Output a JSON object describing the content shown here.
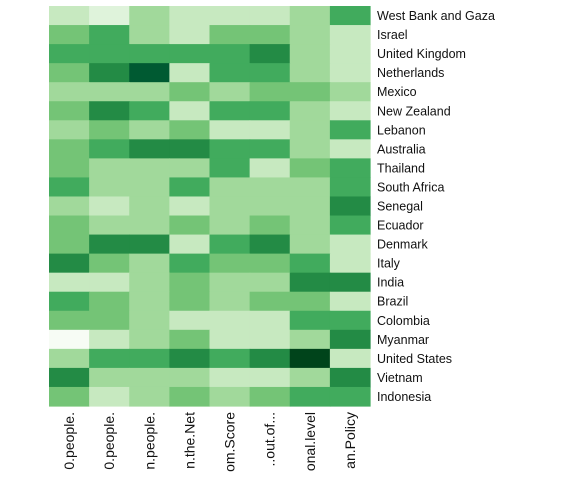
{
  "chart_data": {
    "type": "heatmap",
    "title": "",
    "xlabel": "",
    "ylabel": "",
    "legend": "none",
    "grid": false,
    "palette": [
      "#f7fcf5",
      "#c7e9c0",
      "#a1d99b",
      "#74c476",
      "#41ab5d",
      "#238b45",
      "#005a32",
      "#00441b"
    ],
    "columns": [
      "0.people.",
      "0.people.",
      "n.people.",
      "n.the.Net",
      "om.Score",
      "..out.of...",
      "onal.level",
      "an.Policy"
    ],
    "rows": [
      "West Bank and Gaza",
      "Israel",
      "United Kingdom",
      "Netherlands",
      "Mexico",
      "New Zealand",
      "Lebanon",
      "Australia",
      "Thailand",
      "South Africa",
      "Senegal",
      "Ecuador",
      "Denmark",
      "Italy",
      "India",
      "Brazil",
      "Colombia",
      "Myanmar",
      "United States",
      "Vietnam",
      "Indonesia"
    ],
    "values": [
      [
        1,
        0.5,
        2,
        1,
        1,
        1,
        2,
        4
      ],
      [
        3,
        4,
        2,
        1,
        3,
        3,
        2,
        1
      ],
      [
        4,
        4,
        4,
        4,
        4,
        5,
        2,
        1
      ],
      [
        3,
        5,
        6,
        1,
        4,
        4,
        2,
        1
      ],
      [
        2,
        2,
        2,
        3,
        2,
        3,
        3,
        2
      ],
      [
        3,
        5,
        4,
        1,
        4,
        4,
        2,
        1
      ],
      [
        2,
        3,
        2,
        3,
        1,
        1,
        2,
        4
      ],
      [
        3,
        4,
        5,
        5,
        4,
        4,
        2,
        1
      ],
      [
        3,
        2,
        2,
        2,
        4,
        1,
        3,
        4
      ],
      [
        4,
        2,
        2,
        4,
        2,
        2,
        2,
        4
      ],
      [
        2,
        1,
        2,
        1,
        2,
        2,
        2,
        5
      ],
      [
        3,
        2,
        2,
        3,
        2,
        3,
        2,
        4
      ],
      [
        3,
        5,
        5,
        1,
        4,
        5,
        2,
        1
      ],
      [
        5,
        3,
        2,
        4,
        3,
        3,
        4,
        1
      ],
      [
        1,
        1,
        2,
        3,
        2,
        2,
        5,
        5
      ],
      [
        4,
        3,
        2,
        3,
        2,
        3,
        3,
        1
      ],
      [
        3,
        3,
        2,
        1,
        1,
        1,
        4,
        4
      ],
      [
        0,
        1,
        2,
        3,
        1,
        1,
        2,
        5
      ],
      [
        2,
        4,
        4,
        5,
        4,
        5,
        7,
        1
      ],
      [
        5,
        2,
        2,
        2,
        1,
        1,
        2,
        5
      ],
      [
        3,
        1,
        2,
        3,
        2,
        3,
        4,
        4
      ]
    ]
  }
}
